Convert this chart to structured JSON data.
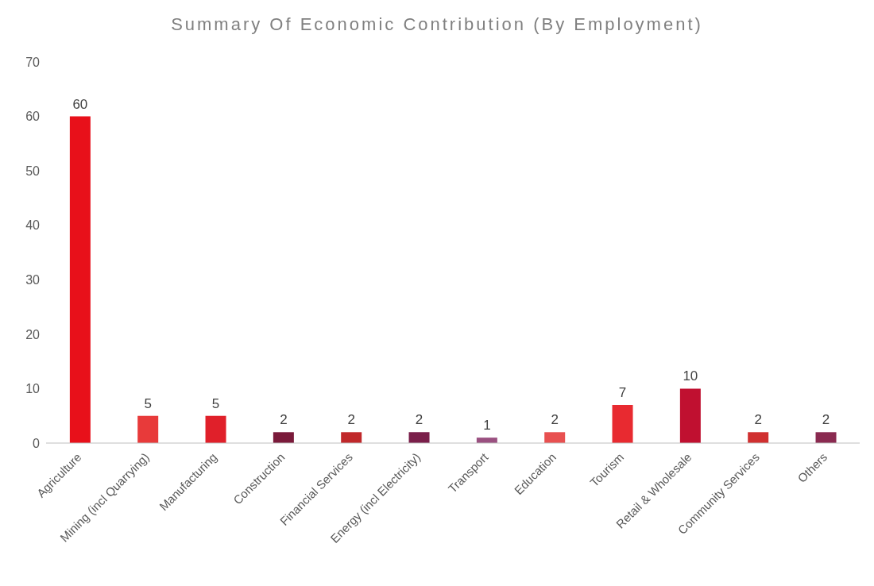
{
  "chart_data": {
    "type": "bar",
    "title": "Summary Of Economic Contribution (By Employment)",
    "categories": [
      "Agriculture",
      "Mining (incl Quarrying)",
      "Manufacturing",
      "Construction",
      "Financial Services",
      "Energy (incl Electricity)",
      "Transport",
      "Education",
      "Tourism",
      "Retail & Wholesale",
      "Community Services",
      "Others"
    ],
    "values": [
      60,
      5,
      5,
      2,
      2,
      2,
      1,
      2,
      7,
      10,
      2,
      2
    ],
    "colors": [
      "#e8101a",
      "#e83a3a",
      "#e0202a",
      "#7a1a3a",
      "#c0282a",
      "#7a1f4a",
      "#9a5080",
      "#e85050",
      "#e82a30",
      "#c01030",
      "#d03030",
      "#8a2a50"
    ],
    "ylim": [
      0,
      70
    ],
    "yticks": [
      0,
      10,
      20,
      30,
      40,
      50,
      60,
      70
    ],
    "grid": false,
    "data_labels": true
  }
}
